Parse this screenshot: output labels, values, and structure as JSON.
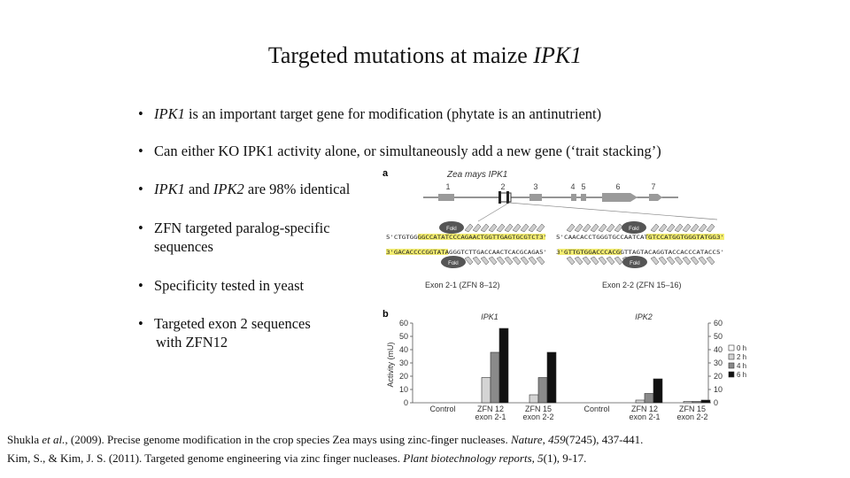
{
  "title": {
    "plain": "Targeted mutations at maize ",
    "italic": "IPK1"
  },
  "bullets": [
    {
      "dot": "•",
      "italic": "IPK1",
      "rest": " is an important target gene for modification (phytate is an antinutrient)"
    },
    {
      "dot": "•",
      "text": "Can either KO IPK1 activity alone, or simultaneously add a new gene (‘trait stacking’)"
    },
    {
      "dot": "•",
      "italic1": "IPK1",
      "mid": " and ",
      "italic2": "IPK2",
      "rest": " are 98% identical"
    },
    {
      "dot": "•",
      "line1": "ZFN targeted paralog-specific",
      "line2": "sequences"
    },
    {
      "dot": "•",
      "text": "Specificity tested in yeast"
    },
    {
      "dot": "•",
      "line1": "Targeted exon 2 sequences",
      "line2": "with ZFN12"
    }
  ],
  "references": [
    {
      "a": "Shukla ",
      "b": "et al.",
      "c": ", (2009). Precise genome modification in the crop species Zea mays using zinc-finger nucleases. ",
      "d": "Nature",
      "e": ", ",
      "f": "459",
      "g": "(7245), 437-441."
    },
    {
      "a": "Kim, S., & Kim, J. S. (2011). Targeted genome engineering via zinc finger nucleases. ",
      "b": "Plant biotechnology reports",
      "c": ", ",
      "d": "5",
      "e": "(1), 9-17."
    }
  ],
  "figure_a": {
    "panel_label": "a",
    "gene_label": "Zea mays IPK1",
    "exons": [
      "1",
      "2",
      "3",
      "4",
      "5",
      "6",
      "7"
    ],
    "foki": "FokI",
    "left": {
      "top_seq": "5'CTGTGGGGCCATATCCCAGAACTGGTTGAGTGCGTCT3'",
      "bottom_seq": "3'GACACCCCGGTATAGGGTCTTGACCAACTCACGCAGA5'",
      "label": "Exon 2-1 (ZFN 8–12)"
    },
    "right": {
      "top_seq": "5'CAACACCTGGGTGCCAATCATGTCCATGGTGGGTATGG3'",
      "bottom_seq": "3'GTTGTGGACCCACGGTTAGTACAGGTACCACCCATACC5'",
      "label": "Exon 2-2 (ZFN 15–16)"
    }
  },
  "chart_data": {
    "type": "bar",
    "panel_label": "b",
    "ylabel": "Activity (mU)",
    "ylim": [
      0,
      60
    ],
    "yticks": [
      0,
      10,
      20,
      30,
      40,
      50,
      60
    ],
    "groups": [
      {
        "name": "IPK1",
        "categories": [
          {
            "label1": "Control",
            "label2": "",
            "values": [
              0,
              0,
              0,
              0
            ]
          },
          {
            "label1": "ZFN 12",
            "label2": "exon 2-1",
            "values": [
              0,
              19,
              38,
              56
            ]
          },
          {
            "label1": "ZFN 15",
            "label2": "exon 2-2",
            "values": [
              0,
              6,
              19,
              38
            ]
          }
        ]
      },
      {
        "name": "IPK2",
        "categories": [
          {
            "label1": "Control",
            "label2": "",
            "values": [
              0,
              0,
              0,
              0
            ]
          },
          {
            "label1": "ZFN 12",
            "label2": "exon 2-1",
            "values": [
              0,
              2,
              7,
              18
            ]
          },
          {
            "label1": "ZFN 15",
            "label2": "exon 2-2",
            "values": [
              0,
              1,
              1,
              2
            ]
          }
        ]
      }
    ],
    "series": [
      {
        "name": "0 h",
        "color": "#ffffff"
      },
      {
        "name": "2 h",
        "color": "#d4d4d4"
      },
      {
        "name": "4 h",
        "color": "#8a8a8a"
      },
      {
        "name": "6 h",
        "color": "#111111"
      }
    ],
    "legend": "right"
  }
}
